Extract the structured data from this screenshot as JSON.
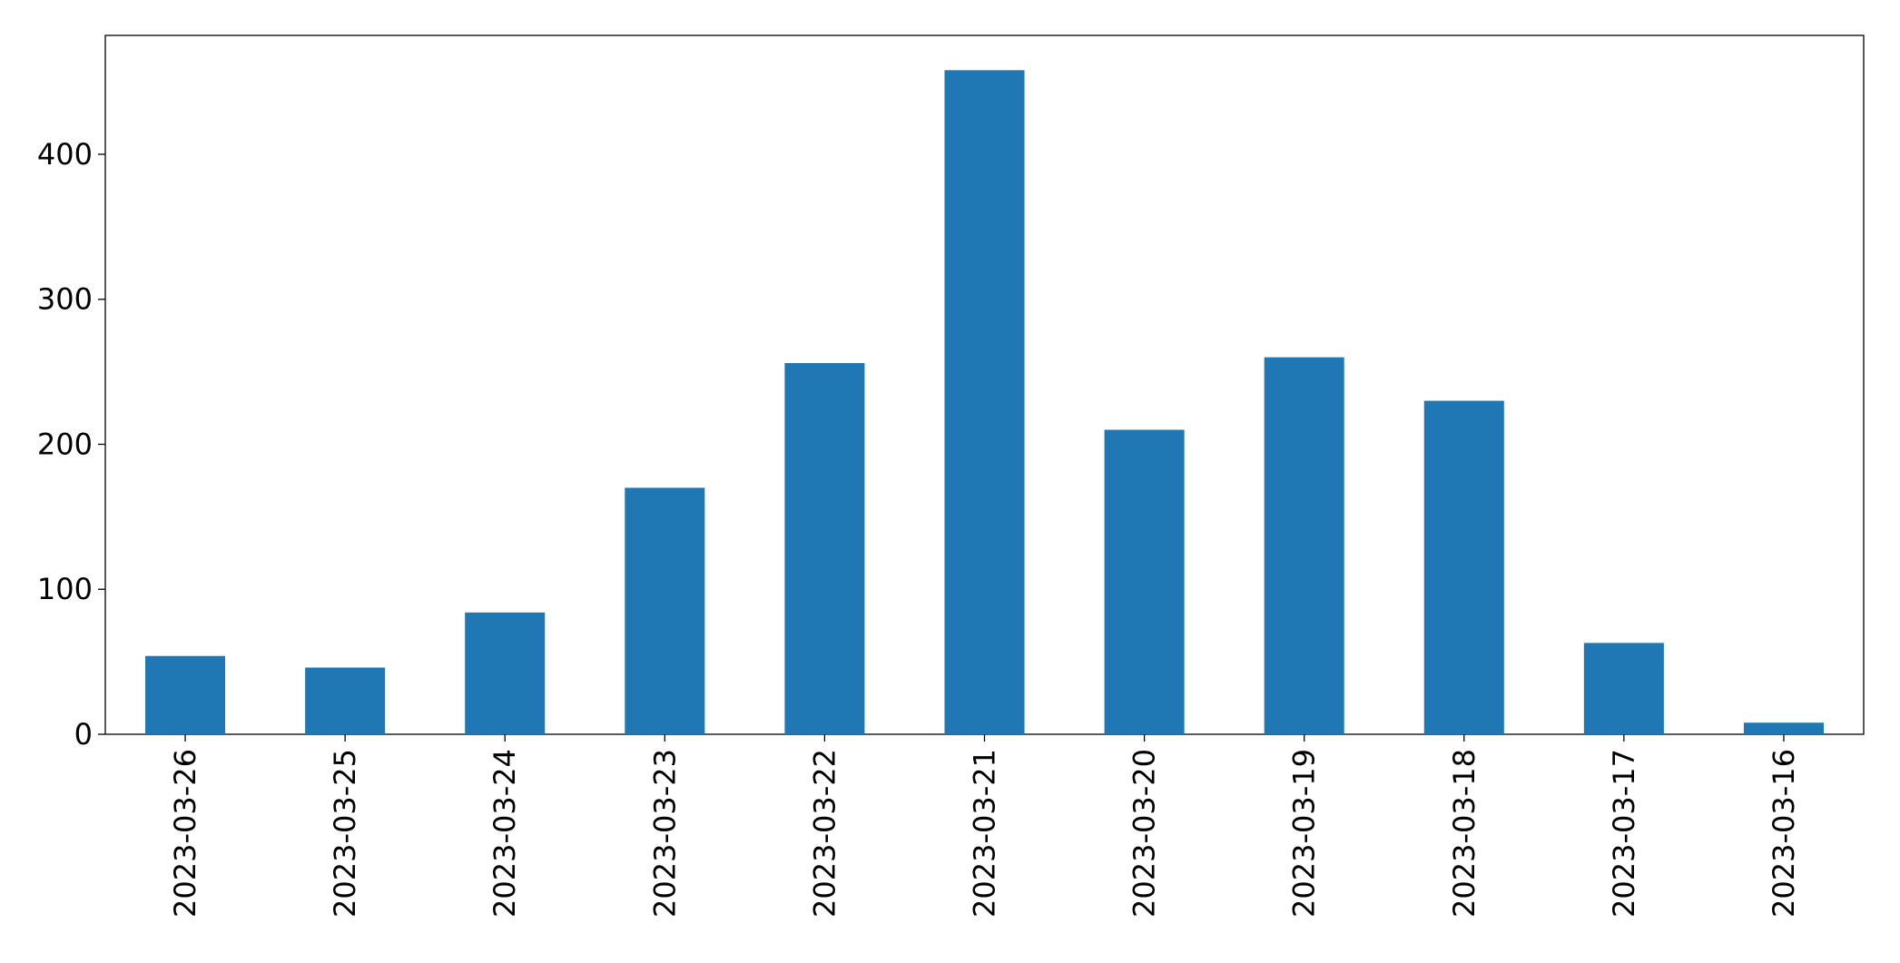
{
  "chart_data": {
    "type": "bar",
    "categories": [
      "2023-03-26",
      "2023-03-25",
      "2023-03-24",
      "2023-03-23",
      "2023-03-22",
      "2023-03-21",
      "2023-03-20",
      "2023-03-19",
      "2023-03-18",
      "2023-03-17",
      "2023-03-16"
    ],
    "values": [
      54,
      46,
      84,
      170,
      256,
      458,
      210,
      260,
      230,
      63,
      8
    ],
    "color": "#1f77b4",
    "ylim": [
      0,
      482
    ],
    "yticks": [
      0,
      100,
      200,
      300,
      400
    ],
    "grid": false
  }
}
